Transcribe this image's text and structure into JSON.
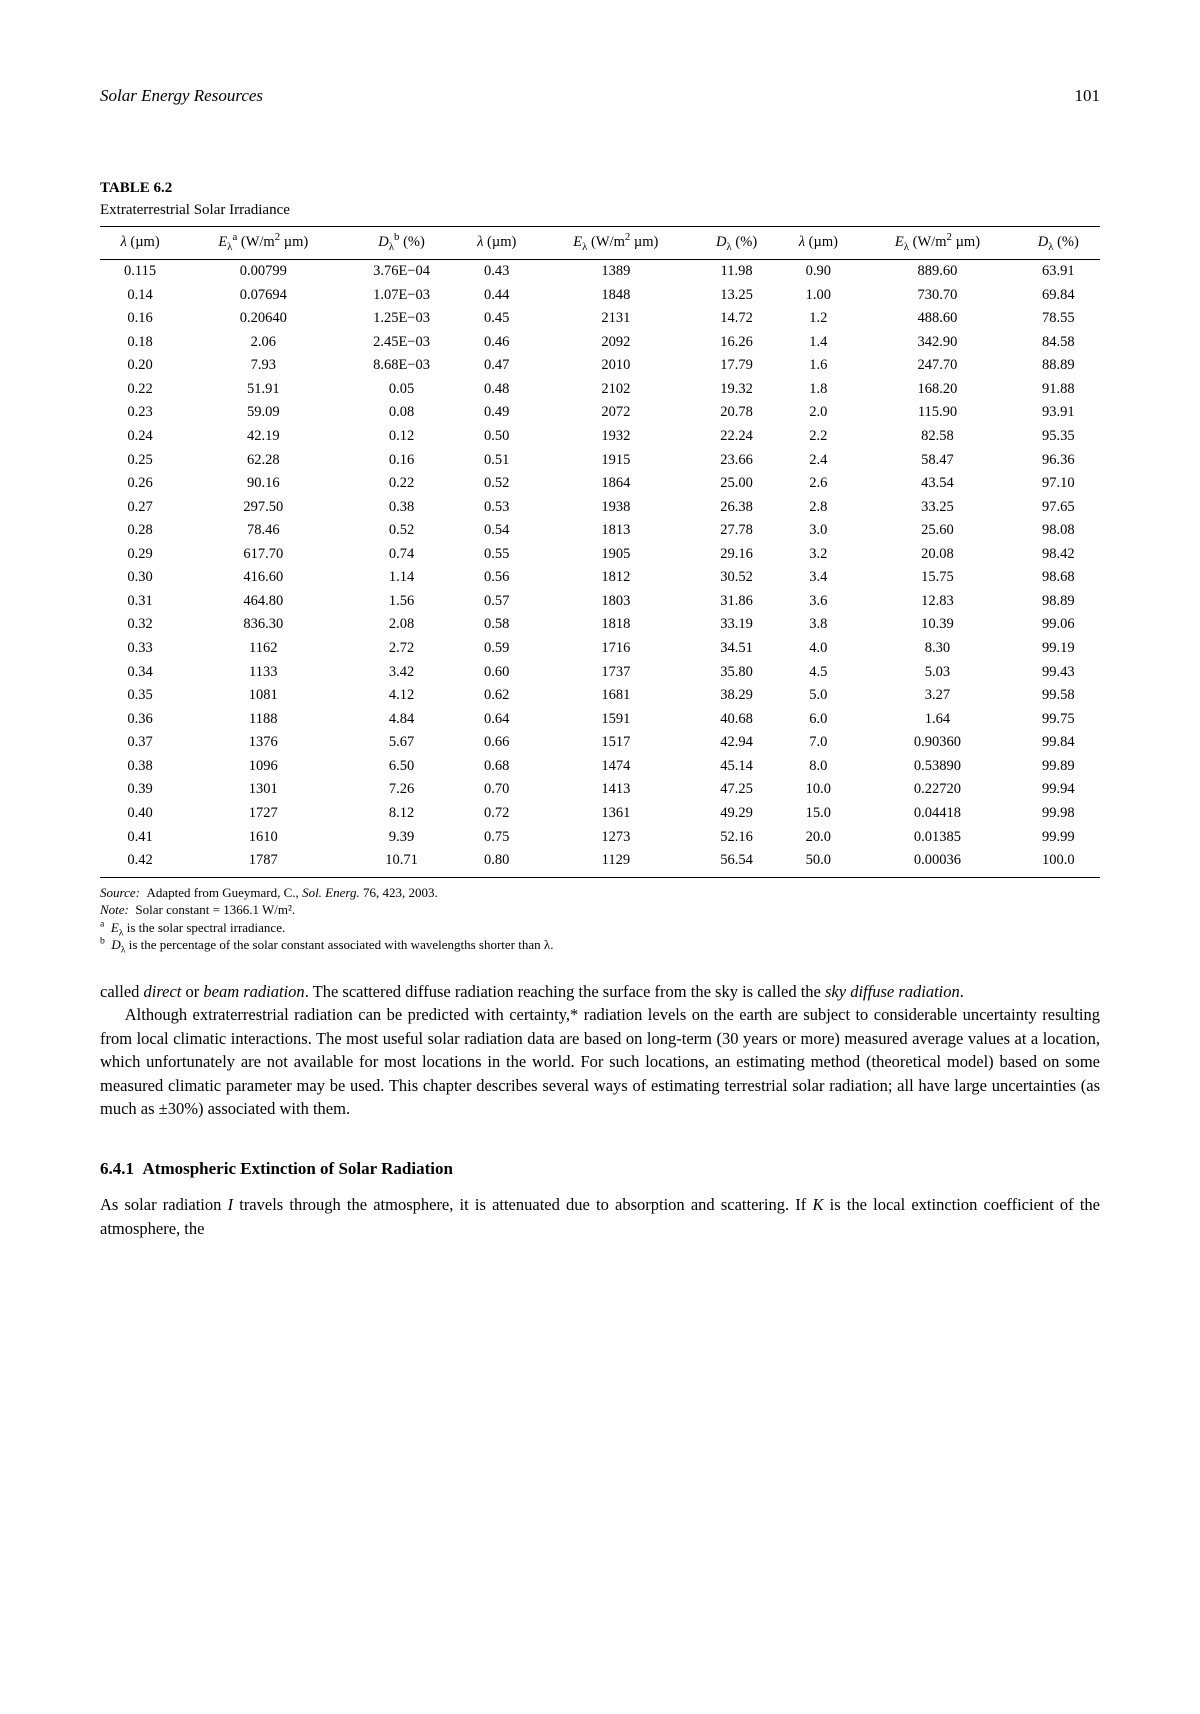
{
  "page": {
    "running_title": "Solar Energy Resources",
    "page_number": "101"
  },
  "table": {
    "label": "TABLE 6.2",
    "caption": "Extraterrestrial Solar Irradiance",
    "columns": [
      "λ (µm)",
      "E_λ^a (W/m² µm)",
      "D_λ^b (%)",
      "λ (µm)",
      "E_λ (W/m² µm)",
      "D_λ (%)",
      "λ (µm)",
      "E_λ (W/m² µm)",
      "D_λ (%)"
    ],
    "rows": [
      [
        "0.115",
        "0.00799",
        "3.76E−04",
        "0.43",
        "1389",
        "11.98",
        "0.90",
        "889.60",
        "63.91"
      ],
      [
        "0.14",
        "0.07694",
        "1.07E−03",
        "0.44",
        "1848",
        "13.25",
        "1.00",
        "730.70",
        "69.84"
      ],
      [
        "0.16",
        "0.20640",
        "1.25E−03",
        "0.45",
        "2131",
        "14.72",
        "1.2",
        "488.60",
        "78.55"
      ],
      [
        "0.18",
        "2.06",
        "2.45E−03",
        "0.46",
        "2092",
        "16.26",
        "1.4",
        "342.90",
        "84.58"
      ],
      [
        "0.20",
        "7.93",
        "8.68E−03",
        "0.47",
        "2010",
        "17.79",
        "1.6",
        "247.70",
        "88.89"
      ],
      [
        "0.22",
        "51.91",
        "0.05",
        "0.48",
        "2102",
        "19.32",
        "1.8",
        "168.20",
        "91.88"
      ],
      [
        "0.23",
        "59.09",
        "0.08",
        "0.49",
        "2072",
        "20.78",
        "2.0",
        "115.90",
        "93.91"
      ],
      [
        "0.24",
        "42.19",
        "0.12",
        "0.50",
        "1932",
        "22.24",
        "2.2",
        "82.58",
        "95.35"
      ],
      [
        "0.25",
        "62.28",
        "0.16",
        "0.51",
        "1915",
        "23.66",
        "2.4",
        "58.47",
        "96.36"
      ],
      [
        "0.26",
        "90.16",
        "0.22",
        "0.52",
        "1864",
        "25.00",
        "2.6",
        "43.54",
        "97.10"
      ],
      [
        "0.27",
        "297.50",
        "0.38",
        "0.53",
        "1938",
        "26.38",
        "2.8",
        "33.25",
        "97.65"
      ],
      [
        "0.28",
        "78.46",
        "0.52",
        "0.54",
        "1813",
        "27.78",
        "3.0",
        "25.60",
        "98.08"
      ],
      [
        "0.29",
        "617.70",
        "0.74",
        "0.55",
        "1905",
        "29.16",
        "3.2",
        "20.08",
        "98.42"
      ],
      [
        "0.30",
        "416.60",
        "1.14",
        "0.56",
        "1812",
        "30.52",
        "3.4",
        "15.75",
        "98.68"
      ],
      [
        "0.31",
        "464.80",
        "1.56",
        "0.57",
        "1803",
        "31.86",
        "3.6",
        "12.83",
        "98.89"
      ],
      [
        "0.32",
        "836.30",
        "2.08",
        "0.58",
        "1818",
        "33.19",
        "3.8",
        "10.39",
        "99.06"
      ],
      [
        "0.33",
        "1162",
        "2.72",
        "0.59",
        "1716",
        "34.51",
        "4.0",
        "8.30",
        "99.19"
      ],
      [
        "0.34",
        "1133",
        "3.42",
        "0.60",
        "1737",
        "35.80",
        "4.5",
        "5.03",
        "99.43"
      ],
      [
        "0.35",
        "1081",
        "4.12",
        "0.62",
        "1681",
        "38.29",
        "5.0",
        "3.27",
        "99.58"
      ],
      [
        "0.36",
        "1188",
        "4.84",
        "0.64",
        "1591",
        "40.68",
        "6.0",
        "1.64",
        "99.75"
      ],
      [
        "0.37",
        "1376",
        "5.67",
        "0.66",
        "1517",
        "42.94",
        "7.0",
        "0.90360",
        "99.84"
      ],
      [
        "0.38",
        "1096",
        "6.50",
        "0.68",
        "1474",
        "45.14",
        "8.0",
        "0.53890",
        "99.89"
      ],
      [
        "0.39",
        "1301",
        "7.26",
        "0.70",
        "1413",
        "47.25",
        "10.0",
        "0.22720",
        "99.94"
      ],
      [
        "0.40",
        "1727",
        "8.12",
        "0.72",
        "1361",
        "49.29",
        "15.0",
        "0.04418",
        "99.98"
      ],
      [
        "0.41",
        "1610",
        "9.39",
        "0.75",
        "1273",
        "52.16",
        "20.0",
        "0.01385",
        "99.99"
      ],
      [
        "0.42",
        "1787",
        "10.71",
        "0.80",
        "1129",
        "56.54",
        "50.0",
        "0.00036",
        "100.0"
      ]
    ],
    "notes": {
      "source_label": "Source:",
      "source_text": "Adapted from Gueymard, C., Sol. Energ. 76, 423, 2003.",
      "note_label": "Note:",
      "note_text": "Solar constant = 1366.1 W/m².",
      "footnote_a_mark": "a",
      "footnote_a_text": "E_λ is the solar spectral irradiance.",
      "footnote_b_mark": "b",
      "footnote_b_text": "D_λ is the percentage of the solar constant associated with wavelengths shorter than λ."
    }
  },
  "body": {
    "para1_a": "called ",
    "para1_i1": "direct",
    "para1_b": " or ",
    "para1_i2": "beam radiation",
    "para1_c": ". The scattered diffuse radiation reaching the surface from the sky is called the ",
    "para1_i3": "sky diffuse radiation",
    "para1_d": ".",
    "para2": "Although extraterrestrial radiation can be predicted with certainty,* radiation levels on the earth are subject to considerable uncertainty resulting from local climatic interactions. The most useful solar radiation data are based on long-term (30 years or more) measured average values at a location, which unfortunately are not available for most locations in the world. For such locations, an estimating method (theoretical model) based on some measured climatic parameter may be used. This chapter describes several ways of estimating terrestrial solar radiation; all have large uncertainties (as much as ±30%) associated with them."
  },
  "section": {
    "number": "6.4.1",
    "title": "Atmospheric Extinction of Solar Radiation",
    "para_a": "As solar radiation ",
    "para_ivar": "I",
    "para_b": " travels through the atmosphere, it is attenuated due to absorption and scattering. If ",
    "para_kvar": "K",
    "para_c": " is the local extinction coefficient of the atmosphere, the"
  }
}
